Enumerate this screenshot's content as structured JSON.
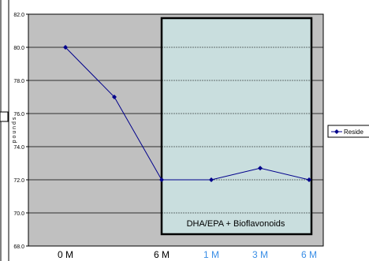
{
  "chart_data": {
    "type": "line",
    "title": "",
    "xlabel": "",
    "ylabel": "p o u n d s",
    "ylim": [
      68.0,
      82.0
    ],
    "yticks": [
      "68.0",
      "70.0",
      "72.0",
      "74.0",
      "76.0",
      "78.0",
      "80.0",
      "82.0"
    ],
    "categories": [
      "0 M",
      "",
      "6 M",
      "1 M",
      "3 M",
      "6 M"
    ],
    "category_colors": [
      "#000000",
      "#000000",
      "#000000",
      "#3a8ee6",
      "#3a8ee6",
      "#3a8ee6"
    ],
    "series": [
      {
        "name": "Reside",
        "values": [
          80.0,
          77.0,
          72.0,
          72.0,
          72.7,
          72.0
        ],
        "color": "#00008b"
      }
    ],
    "annotation": "DHA/EPA + Bioflavonoids",
    "shaded_region": {
      "from_category": 2,
      "to_category": 5,
      "fill": "#c9dede"
    },
    "plot_background": "#c0c0c0",
    "grid": true,
    "legend_position": "right"
  }
}
